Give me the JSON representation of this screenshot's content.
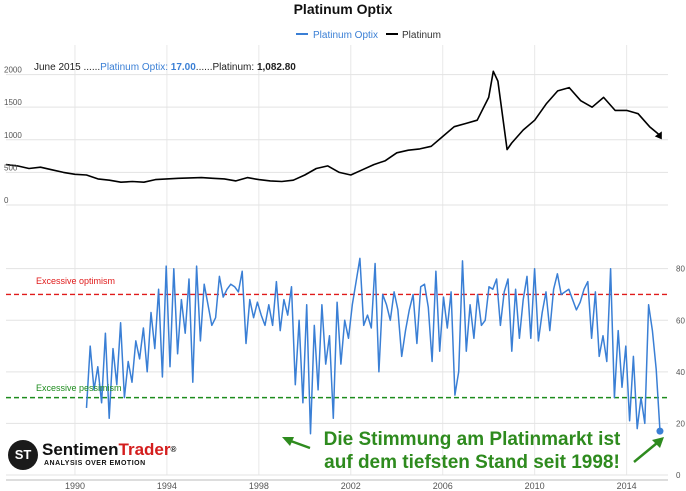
{
  "chart_data": {
    "type": "line",
    "title": "Platinum Optix",
    "legend": {
      "placement": "top-center",
      "items": [
        "Platinum Optix",
        "Platinum"
      ]
    },
    "info_line": {
      "date": "June 2015",
      "optix_label": "Platinum Optix: ",
      "optix_value": "17.00",
      "price_label": "Platinum: ",
      "price_value": "1,082.80",
      "sep1": " ......",
      "sep2": "......"
    },
    "x_ticks": [
      "1990",
      "1994",
      "1998",
      "2002",
      "2006",
      "2010",
      "2014"
    ],
    "x_range": [
      1987.0,
      2015.8
    ],
    "grid": true,
    "panels": [
      {
        "name": "Platinum",
        "ylim": [
          0,
          2300
        ],
        "y_ticks": [
          "0",
          "500",
          "1000",
          "1500",
          "2000"
        ],
        "series": [
          {
            "name": "Platinum",
            "color": "#000000",
            "points": [
              [
                1987.0,
                620
              ],
              [
                1987.5,
                600
              ],
              [
                1988.0,
                560
              ],
              [
                1988.5,
                580
              ],
              [
                1989.0,
                540
              ],
              [
                1989.5,
                500
              ],
              [
                1990.0,
                470
              ],
              [
                1990.5,
                460
              ],
              [
                1991.0,
                400
              ],
              [
                1991.5,
                380
              ],
              [
                1992.0,
                350
              ],
              [
                1992.5,
                360
              ],
              [
                1993.0,
                350
              ],
              [
                1993.5,
                390
              ],
              [
                1994.0,
                400
              ],
              [
                1994.5,
                410
              ],
              [
                1995.0,
                415
              ],
              [
                1995.5,
                420
              ],
              [
                1996.0,
                410
              ],
              [
                1996.5,
                400
              ],
              [
                1997.0,
                370
              ],
              [
                1997.5,
                420
              ],
              [
                1998.0,
                390
              ],
              [
                1998.5,
                370
              ],
              [
                1999.0,
                360
              ],
              [
                1999.5,
                380
              ],
              [
                2000.0,
                460
              ],
              [
                2000.5,
                560
              ],
              [
                2001.0,
                600
              ],
              [
                2001.5,
                500
              ],
              [
                2002.0,
                460
              ],
              [
                2002.5,
                540
              ],
              [
                2003.0,
                620
              ],
              [
                2003.5,
                680
              ],
              [
                2004.0,
                800
              ],
              [
                2004.5,
                840
              ],
              [
                2005.0,
                860
              ],
              [
                2005.5,
                900
              ],
              [
                2006.0,
                1050
              ],
              [
                2006.5,
                1200
              ],
              [
                2007.0,
                1250
              ],
              [
                2007.5,
                1300
              ],
              [
                2008.0,
                1650
              ],
              [
                2008.2,
                2050
              ],
              [
                2008.4,
                1900
              ],
              [
                2008.8,
                850
              ],
              [
                2009.0,
                950
              ],
              [
                2009.5,
                1150
              ],
              [
                2010.0,
                1300
              ],
              [
                2010.5,
                1550
              ],
              [
                2011.0,
                1750
              ],
              [
                2011.5,
                1800
              ],
              [
                2012.0,
                1600
              ],
              [
                2012.5,
                1500
              ],
              [
                2013.0,
                1650
              ],
              [
                2013.5,
                1450
              ],
              [
                2014.0,
                1450
              ],
              [
                2014.5,
                1400
              ],
              [
                2015.0,
                1200
              ],
              [
                2015.4,
                1083
              ]
            ]
          }
        ]
      },
      {
        "name": "Platinum Optix",
        "ylim": [
          0,
          95
        ],
        "y_ticks": [
          "0",
          "20",
          "40",
          "60",
          "80"
        ],
        "series": [
          {
            "name": "Platinum Optix",
            "color": "#3a7fd5",
            "start": 1990.5,
            "end": 2015.45,
            "values": [
              26,
              50,
              33,
              42,
              28,
              55,
              22,
              49,
              35,
              59,
              30,
              44,
              36,
              52,
              45,
              57,
              40,
              63,
              49,
              72,
              38,
              81,
              42,
              80,
              47,
              68,
              55,
              76,
              36,
              81,
              52,
              74,
              66,
              58,
              61,
              77,
              69,
              72,
              74,
              73,
              71,
              79,
              51,
              68,
              61,
              67,
              62,
              58,
              66,
              58,
              75,
              56,
              68,
              62,
              73,
              35,
              60,
              28,
              66,
              16,
              58,
              33,
              66,
              43,
              54,
              22,
              67,
              43,
              60,
              53,
              66,
              75,
              84,
              58,
              62,
              57,
              82,
              40,
              70,
              66,
              60,
              71,
              64,
              46,
              56,
              64,
              70,
              51,
              73,
              74,
              65,
              44,
              79,
              48,
              69,
              57,
              71,
              31,
              40,
              83,
              48,
              66,
              53,
              70,
              58,
              60,
              73,
              72,
              76,
              58,
              71,
              76,
              48,
              72,
              53,
              68,
              77,
              53,
              80,
              52,
              63,
              71,
              56,
              72,
              78,
              70,
              71,
              72,
              68,
              64,
              67,
              72,
              75,
              53,
              71,
              46,
              54,
              44,
              80,
              30,
              56,
              34,
              50,
              21,
              46,
              18,
              30,
              20,
              66,
              56,
              41,
              17
            ]
          }
        ],
        "lines": [
          {
            "label": "Excessive optimism",
            "value": 70,
            "color": "#e01b1b"
          },
          {
            "label": "Excessive pessimism",
            "value": 30,
            "color": "#1e8c1e"
          }
        ],
        "marker": {
          "x": 2015.45,
          "y": 17
        }
      }
    ],
    "annotation": [
      "Die Stimmung am Platinmarkt ist",
      "auf dem tiefsten Stand seit 1998!"
    ]
  },
  "branding": {
    "badge": "ST",
    "name_a": "Sentimen",
    "name_b": "Trader",
    "mark": "®",
    "tagline": "ANALYSIS OVER EMOTION"
  }
}
